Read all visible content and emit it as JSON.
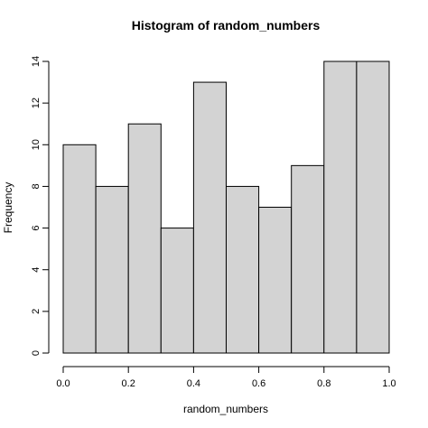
{
  "chart_data": {
    "type": "bar",
    "title": "Histogram of random_numbers",
    "xlabel": "random_numbers",
    "ylabel": "Frequency",
    "bins": [
      {
        "start": 0.0,
        "end": 0.1,
        "count": 10
      },
      {
        "start": 0.1,
        "end": 0.2,
        "count": 8
      },
      {
        "start": 0.2,
        "end": 0.3,
        "count": 11
      },
      {
        "start": 0.3,
        "end": 0.4,
        "count": 6
      },
      {
        "start": 0.4,
        "end": 0.5,
        "count": 13
      },
      {
        "start": 0.5,
        "end": 0.6,
        "count": 8
      },
      {
        "start": 0.6,
        "end": 0.7,
        "count": 7
      },
      {
        "start": 0.7,
        "end": 0.8,
        "count": 9
      },
      {
        "start": 0.8,
        "end": 0.9,
        "count": 14
      },
      {
        "start": 0.9,
        "end": 1.0,
        "count": 14
      }
    ],
    "xlim": [
      0.0,
      1.0
    ],
    "ylim": [
      0,
      14
    ],
    "x_ticks": [
      "0.0",
      "0.2",
      "0.4",
      "0.6",
      "0.8",
      "1.0"
    ],
    "y_ticks": [
      "0",
      "2",
      "4",
      "6",
      "8",
      "10",
      "12",
      "14"
    ],
    "bar_fill": "#d3d3d3",
    "bar_stroke": "#000000",
    "grid": false,
    "legend": "none"
  }
}
